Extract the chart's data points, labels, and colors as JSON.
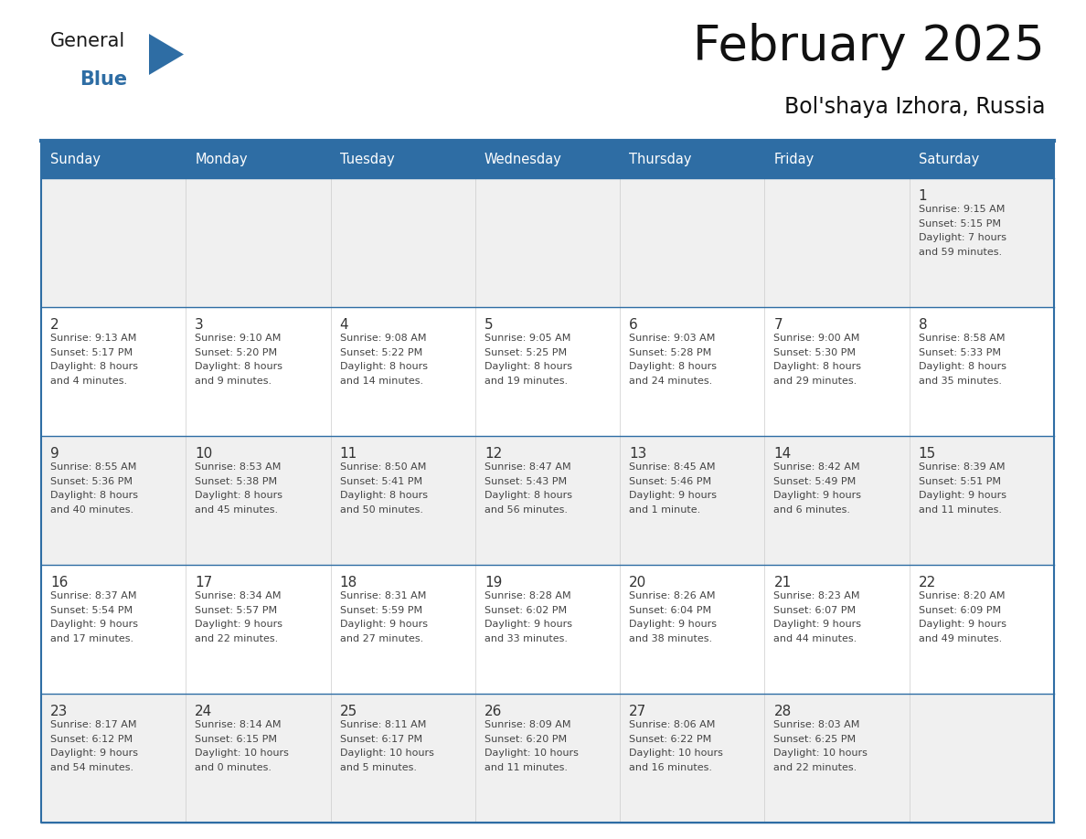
{
  "title": "February 2025",
  "subtitle": "Bol'shaya Izhora, Russia",
  "header_bg": "#2E6DA4",
  "header_text_color": "#FFFFFF",
  "cell_bg_odd": "#FFFFFF",
  "cell_bg_even": "#F0F0F0",
  "border_color": "#2E6DA4",
  "text_color_day": "#333333",
  "text_color_info": "#555555",
  "day_names": [
    "Sunday",
    "Monday",
    "Tuesday",
    "Wednesday",
    "Thursday",
    "Friday",
    "Saturday"
  ],
  "days": [
    {
      "day": 1,
      "col": 6,
      "row": 0,
      "sunrise": "9:15 AM",
      "sunset": "5:15 PM",
      "daylight_line1": "Daylight: 7 hours",
      "daylight_line2": "and 59 minutes."
    },
    {
      "day": 2,
      "col": 0,
      "row": 1,
      "sunrise": "9:13 AM",
      "sunset": "5:17 PM",
      "daylight_line1": "Daylight: 8 hours",
      "daylight_line2": "and 4 minutes."
    },
    {
      "day": 3,
      "col": 1,
      "row": 1,
      "sunrise": "9:10 AM",
      "sunset": "5:20 PM",
      "daylight_line1": "Daylight: 8 hours",
      "daylight_line2": "and 9 minutes."
    },
    {
      "day": 4,
      "col": 2,
      "row": 1,
      "sunrise": "9:08 AM",
      "sunset": "5:22 PM",
      "daylight_line1": "Daylight: 8 hours",
      "daylight_line2": "and 14 minutes."
    },
    {
      "day": 5,
      "col": 3,
      "row": 1,
      "sunrise": "9:05 AM",
      "sunset": "5:25 PM",
      "daylight_line1": "Daylight: 8 hours",
      "daylight_line2": "and 19 minutes."
    },
    {
      "day": 6,
      "col": 4,
      "row": 1,
      "sunrise": "9:03 AM",
      "sunset": "5:28 PM",
      "daylight_line1": "Daylight: 8 hours",
      "daylight_line2": "and 24 minutes."
    },
    {
      "day": 7,
      "col": 5,
      "row": 1,
      "sunrise": "9:00 AM",
      "sunset": "5:30 PM",
      "daylight_line1": "Daylight: 8 hours",
      "daylight_line2": "and 29 minutes."
    },
    {
      "day": 8,
      "col": 6,
      "row": 1,
      "sunrise": "8:58 AM",
      "sunset": "5:33 PM",
      "daylight_line1": "Daylight: 8 hours",
      "daylight_line2": "and 35 minutes."
    },
    {
      "day": 9,
      "col": 0,
      "row": 2,
      "sunrise": "8:55 AM",
      "sunset": "5:36 PM",
      "daylight_line1": "Daylight: 8 hours",
      "daylight_line2": "and 40 minutes."
    },
    {
      "day": 10,
      "col": 1,
      "row": 2,
      "sunrise": "8:53 AM",
      "sunset": "5:38 PM",
      "daylight_line1": "Daylight: 8 hours",
      "daylight_line2": "and 45 minutes."
    },
    {
      "day": 11,
      "col": 2,
      "row": 2,
      "sunrise": "8:50 AM",
      "sunset": "5:41 PM",
      "daylight_line1": "Daylight: 8 hours",
      "daylight_line2": "and 50 minutes."
    },
    {
      "day": 12,
      "col": 3,
      "row": 2,
      "sunrise": "8:47 AM",
      "sunset": "5:43 PM",
      "daylight_line1": "Daylight: 8 hours",
      "daylight_line2": "and 56 minutes."
    },
    {
      "day": 13,
      "col": 4,
      "row": 2,
      "sunrise": "8:45 AM",
      "sunset": "5:46 PM",
      "daylight_line1": "Daylight: 9 hours",
      "daylight_line2": "and 1 minute."
    },
    {
      "day": 14,
      "col": 5,
      "row": 2,
      "sunrise": "8:42 AM",
      "sunset": "5:49 PM",
      "daylight_line1": "Daylight: 9 hours",
      "daylight_line2": "and 6 minutes."
    },
    {
      "day": 15,
      "col": 6,
      "row": 2,
      "sunrise": "8:39 AM",
      "sunset": "5:51 PM",
      "daylight_line1": "Daylight: 9 hours",
      "daylight_line2": "and 11 minutes."
    },
    {
      "day": 16,
      "col": 0,
      "row": 3,
      "sunrise": "8:37 AM",
      "sunset": "5:54 PM",
      "daylight_line1": "Daylight: 9 hours",
      "daylight_line2": "and 17 minutes."
    },
    {
      "day": 17,
      "col": 1,
      "row": 3,
      "sunrise": "8:34 AM",
      "sunset": "5:57 PM",
      "daylight_line1": "Daylight: 9 hours",
      "daylight_line2": "and 22 minutes."
    },
    {
      "day": 18,
      "col": 2,
      "row": 3,
      "sunrise": "8:31 AM",
      "sunset": "5:59 PM",
      "daylight_line1": "Daylight: 9 hours",
      "daylight_line2": "and 27 minutes."
    },
    {
      "day": 19,
      "col": 3,
      "row": 3,
      "sunrise": "8:28 AM",
      "sunset": "6:02 PM",
      "daylight_line1": "Daylight: 9 hours",
      "daylight_line2": "and 33 minutes."
    },
    {
      "day": 20,
      "col": 4,
      "row": 3,
      "sunrise": "8:26 AM",
      "sunset": "6:04 PM",
      "daylight_line1": "Daylight: 9 hours",
      "daylight_line2": "and 38 minutes."
    },
    {
      "day": 21,
      "col": 5,
      "row": 3,
      "sunrise": "8:23 AM",
      "sunset": "6:07 PM",
      "daylight_line1": "Daylight: 9 hours",
      "daylight_line2": "and 44 minutes."
    },
    {
      "day": 22,
      "col": 6,
      "row": 3,
      "sunrise": "8:20 AM",
      "sunset": "6:09 PM",
      "daylight_line1": "Daylight: 9 hours",
      "daylight_line2": "and 49 minutes."
    },
    {
      "day": 23,
      "col": 0,
      "row": 4,
      "sunrise": "8:17 AM",
      "sunset": "6:12 PM",
      "daylight_line1": "Daylight: 9 hours",
      "daylight_line2": "and 54 minutes."
    },
    {
      "day": 24,
      "col": 1,
      "row": 4,
      "sunrise": "8:14 AM",
      "sunset": "6:15 PM",
      "daylight_line1": "Daylight: 10 hours",
      "daylight_line2": "and 0 minutes."
    },
    {
      "day": 25,
      "col": 2,
      "row": 4,
      "sunrise": "8:11 AM",
      "sunset": "6:17 PM",
      "daylight_line1": "Daylight: 10 hours",
      "daylight_line2": "and 5 minutes."
    },
    {
      "day": 26,
      "col": 3,
      "row": 4,
      "sunrise": "8:09 AM",
      "sunset": "6:20 PM",
      "daylight_line1": "Daylight: 10 hours",
      "daylight_line2": "and 11 minutes."
    },
    {
      "day": 27,
      "col": 4,
      "row": 4,
      "sunrise": "8:06 AM",
      "sunset": "6:22 PM",
      "daylight_line1": "Daylight: 10 hours",
      "daylight_line2": "and 16 minutes."
    },
    {
      "day": 28,
      "col": 5,
      "row": 4,
      "sunrise": "8:03 AM",
      "sunset": "6:25 PM",
      "daylight_line1": "Daylight: 10 hours",
      "daylight_line2": "and 22 minutes."
    }
  ]
}
